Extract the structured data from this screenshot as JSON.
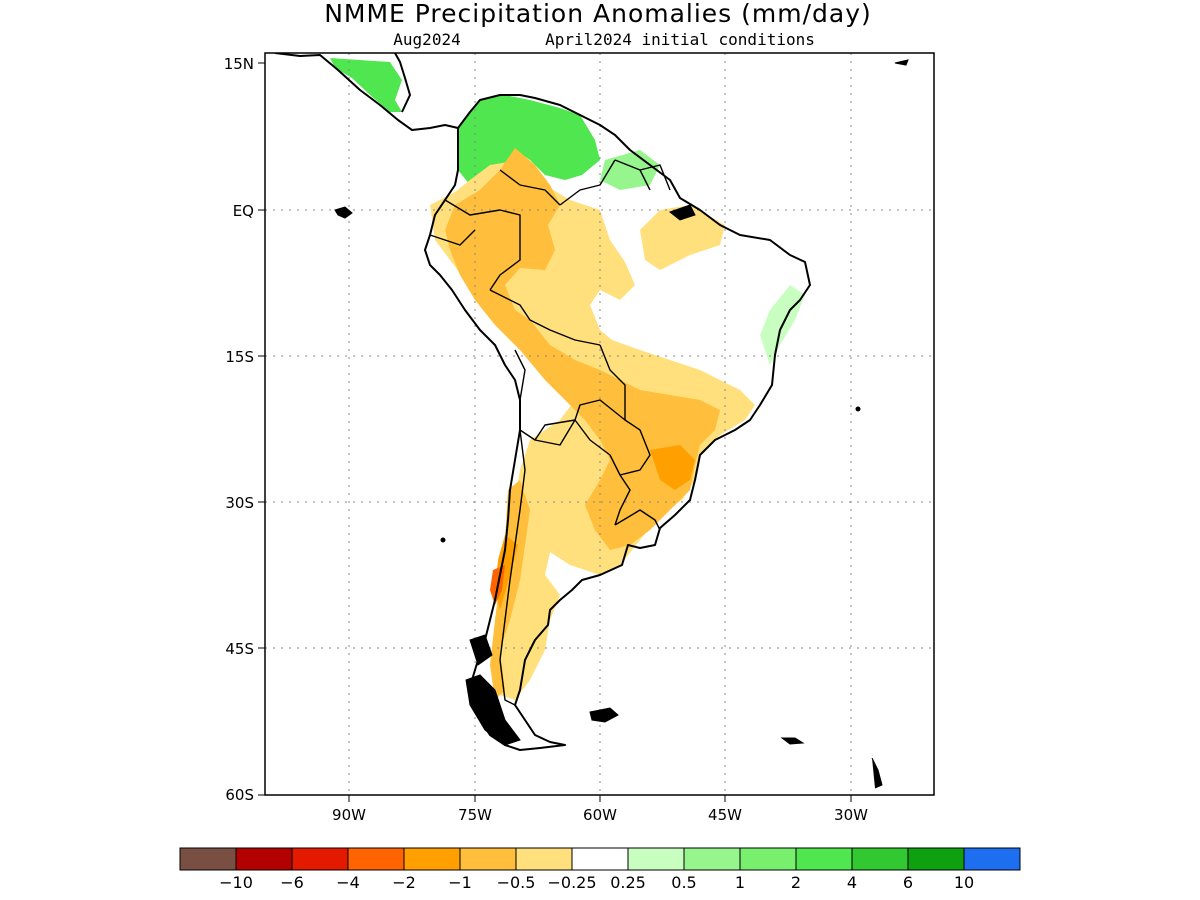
{
  "title": "NMME Precipitation Anomalies (mm/day)",
  "subtitle_left": "Aug2024",
  "subtitle_right": "April2024 initial conditions",
  "map": {
    "lon_range": [
      -100,
      -20
    ],
    "lat_range": [
      -60,
      15
    ],
    "lat_ticks": [
      {
        "value": 15,
        "label": "15N"
      },
      {
        "value": 0,
        "label": "EQ"
      },
      {
        "value": -15,
        "label": "15S"
      },
      {
        "value": -30,
        "label": "30S"
      },
      {
        "value": -45,
        "label": "45S"
      },
      {
        "value": -60,
        "label": "60S"
      }
    ],
    "lon_ticks": [
      {
        "value": -90,
        "label": "90W"
      },
      {
        "value": -75,
        "label": "75W"
      },
      {
        "value": -60,
        "label": "60W"
      },
      {
        "value": -45,
        "label": "45W"
      },
      {
        "value": -30,
        "label": "30W"
      }
    ],
    "grid": true
  },
  "colorbar": {
    "colors": [
      "#7a4f43",
      "#b30000",
      "#e31a00",
      "#ff6400",
      "#ffa000",
      "#ffbe3c",
      "#ffe07c",
      "#ffffff",
      "#c8ffc0",
      "#96f58c",
      "#78f06e",
      "#50e650",
      "#32c832",
      "#0fa00f",
      "#1e6ef0"
    ],
    "labels": [
      "−10",
      "−6",
      "−4",
      "−2",
      "−1",
      "−0.5",
      "−0.25",
      "0.25",
      "0.5",
      "1",
      "2",
      "4",
      "6",
      "10"
    ]
  },
  "anomaly_colors": {
    "light_yellow": "#ffe07c",
    "light_orange": "#ffbe3c",
    "orange": "#ffa000",
    "dark_orange": "#ff6400",
    "red": "#e31a00",
    "pale_green": "#c8ffc0",
    "light_green": "#96f58c",
    "green": "#50e650",
    "mid_green": "#32c832"
  }
}
